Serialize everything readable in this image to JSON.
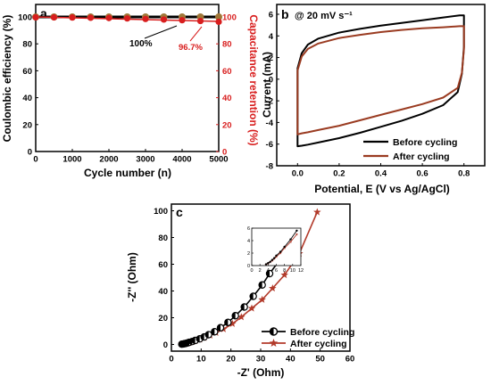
{
  "colors": {
    "black": "#000000",
    "red": "#d81e1e",
    "brown": "#9a3b21",
    "ce_dot": "#a07838",
    "star": "#b23a2a"
  },
  "chart_data": [
    {
      "panel": "a",
      "type": "scatter",
      "xlabel": "Cycle number (n)",
      "ylabel_left": "Coulombic efficiency (%)",
      "ylabel_right": "Capacitance retention (%)",
      "xlim": [
        0,
        5000
      ],
      "ylim_left": [
        0,
        100
      ],
      "ylim_right": [
        0,
        100
      ],
      "xticks": [
        "0",
        "1000",
        "2000",
        "3000",
        "4000",
        "5000"
      ],
      "yticks_left": [
        "0",
        "20",
        "40",
        "60",
        "80",
        "100"
      ],
      "yticks_right": [
        "0",
        "20",
        "40",
        "60",
        "80",
        "100"
      ],
      "annotations": [
        "100%",
        "96.7%"
      ],
      "series": [
        {
          "x": [
            0,
            500,
            1000,
            1500,
            2000,
            2500,
            3000,
            3500,
            4000,
            4500,
            5000
          ],
          "values": [
            100,
            100,
            100,
            100,
            100,
            100,
            100,
            100,
            100,
            100,
            100
          ]
        },
        {
          "x": [
            0,
            500,
            1000,
            1500,
            2000,
            2500,
            3000,
            3500,
            4000,
            4500,
            5000
          ],
          "values": [
            100,
            100,
            99.9,
            99.7,
            99.5,
            99.2,
            98.8,
            98.4,
            97.9,
            97.3,
            96.7
          ]
        }
      ]
    },
    {
      "panel": "b",
      "type": "line",
      "title": "@ 20 mV s⁻¹",
      "xlabel": "Potential, E (V vs Ag/AgCl)",
      "ylabel": "Current (mA)",
      "xlim": [
        -0.1,
        0.9
      ],
      "ylim": [
        -8,
        6
      ],
      "xticks": [
        "0.0",
        "0.2",
        "0.4",
        "0.6",
        "0.8"
      ],
      "yticks": [
        "-8",
        "-6",
        "-4",
        "-2",
        "0",
        "2",
        "4",
        "6"
      ],
      "legend": "bottom-right",
      "series": [
        {
          "name": "Before cycling",
          "x_upper": [
            0,
            0.02,
            0.05,
            0.1,
            0.2,
            0.3,
            0.4,
            0.5,
            0.6,
            0.7,
            0.78,
            0.8
          ],
          "y_upper": [
            1.0,
            2.4,
            3.2,
            3.75,
            4.3,
            4.65,
            4.95,
            5.2,
            5.45,
            5.7,
            5.9,
            5.9
          ],
          "x_lower": [
            0.8,
            0.79,
            0.77,
            0.7,
            0.6,
            0.5,
            0.4,
            0.3,
            0.2,
            0.1,
            0.05,
            0.02,
            0
          ],
          "y_lower": [
            3.0,
            0.5,
            -1.2,
            -2.4,
            -3.2,
            -3.85,
            -4.4,
            -4.95,
            -5.45,
            -5.85,
            -6.05,
            -6.15,
            -6.2
          ]
        },
        {
          "name": "After cycling",
          "x_upper": [
            0,
            0.02,
            0.05,
            0.1,
            0.2,
            0.3,
            0.4,
            0.5,
            0.6,
            0.7,
            0.78,
            0.8
          ],
          "y_upper": [
            0.8,
            2.1,
            2.8,
            3.3,
            3.8,
            4.1,
            4.35,
            4.55,
            4.7,
            4.8,
            4.9,
            4.9
          ],
          "x_lower": [
            0.8,
            0.79,
            0.77,
            0.7,
            0.6,
            0.5,
            0.4,
            0.3,
            0.2,
            0.1,
            0.05,
            0.02,
            0
          ],
          "y_lower": [
            2.8,
            0.6,
            -0.8,
            -1.7,
            -2.3,
            -2.8,
            -3.3,
            -3.8,
            -4.3,
            -4.7,
            -4.9,
            -5.0,
            -5.1
          ]
        }
      ]
    },
    {
      "panel": "c",
      "type": "line",
      "xlabel": "-Z' (Ohm)",
      "ylabel": "-Z'' (Ohm)",
      "xlim": [
        0,
        60
      ],
      "ylim": [
        -5,
        105
      ],
      "xticks": [
        "0",
        "10",
        "20",
        "30",
        "40",
        "50",
        "60"
      ],
      "yticks": [
        "0",
        "20",
        "40",
        "60",
        "80",
        "100"
      ],
      "legend": "bottom-right",
      "inset": {
        "xlim": [
          0,
          12
        ],
        "ylim": [
          0,
          6
        ],
        "xticks": [
          "0",
          "2",
          "4",
          "6",
          "8",
          "10",
          "12"
        ],
        "yticks": [
          "0",
          "2",
          "4",
          "6"
        ]
      },
      "series": [
        {
          "name": "Before cycling",
          "x": [
            3.5,
            4.0,
            4.5,
            5.0,
            5.5,
            6.0,
            7.0,
            8.0,
            9.5,
            11.0,
            12.5,
            14.5,
            16.5,
            19.0,
            21.5,
            24.5,
            27.5,
            30.5,
            33.0,
            36.0,
            39.0
          ],
          "values": [
            0.2,
            0.4,
            0.6,
            0.9,
            1.2,
            1.6,
            2.2,
            3.0,
            4.2,
            5.6,
            7.3,
            9.5,
            12.5,
            16.5,
            21.5,
            28.0,
            36.0,
            44.5,
            53.0,
            62.0,
            72.0
          ]
        },
        {
          "name": "After cycling",
          "x": [
            3.5,
            4.0,
            4.5,
            5.0,
            5.5,
            6.0,
            7.0,
            8.0,
            9.5,
            11.0,
            13.0,
            15.0,
            17.5,
            20.5,
            23.5,
            27.0,
            30.5,
            34.0,
            38.0,
            43.0,
            49.0
          ],
          "values": [
            0.2,
            0.35,
            0.55,
            0.8,
            1.1,
            1.4,
            2.0,
            2.8,
            3.8,
            5.0,
            6.8,
            8.8,
            11.5,
            15.5,
            20.5,
            27.0,
            33.5,
            42.0,
            52.0,
            68.0,
            99.0
          ]
        }
      ]
    }
  ]
}
